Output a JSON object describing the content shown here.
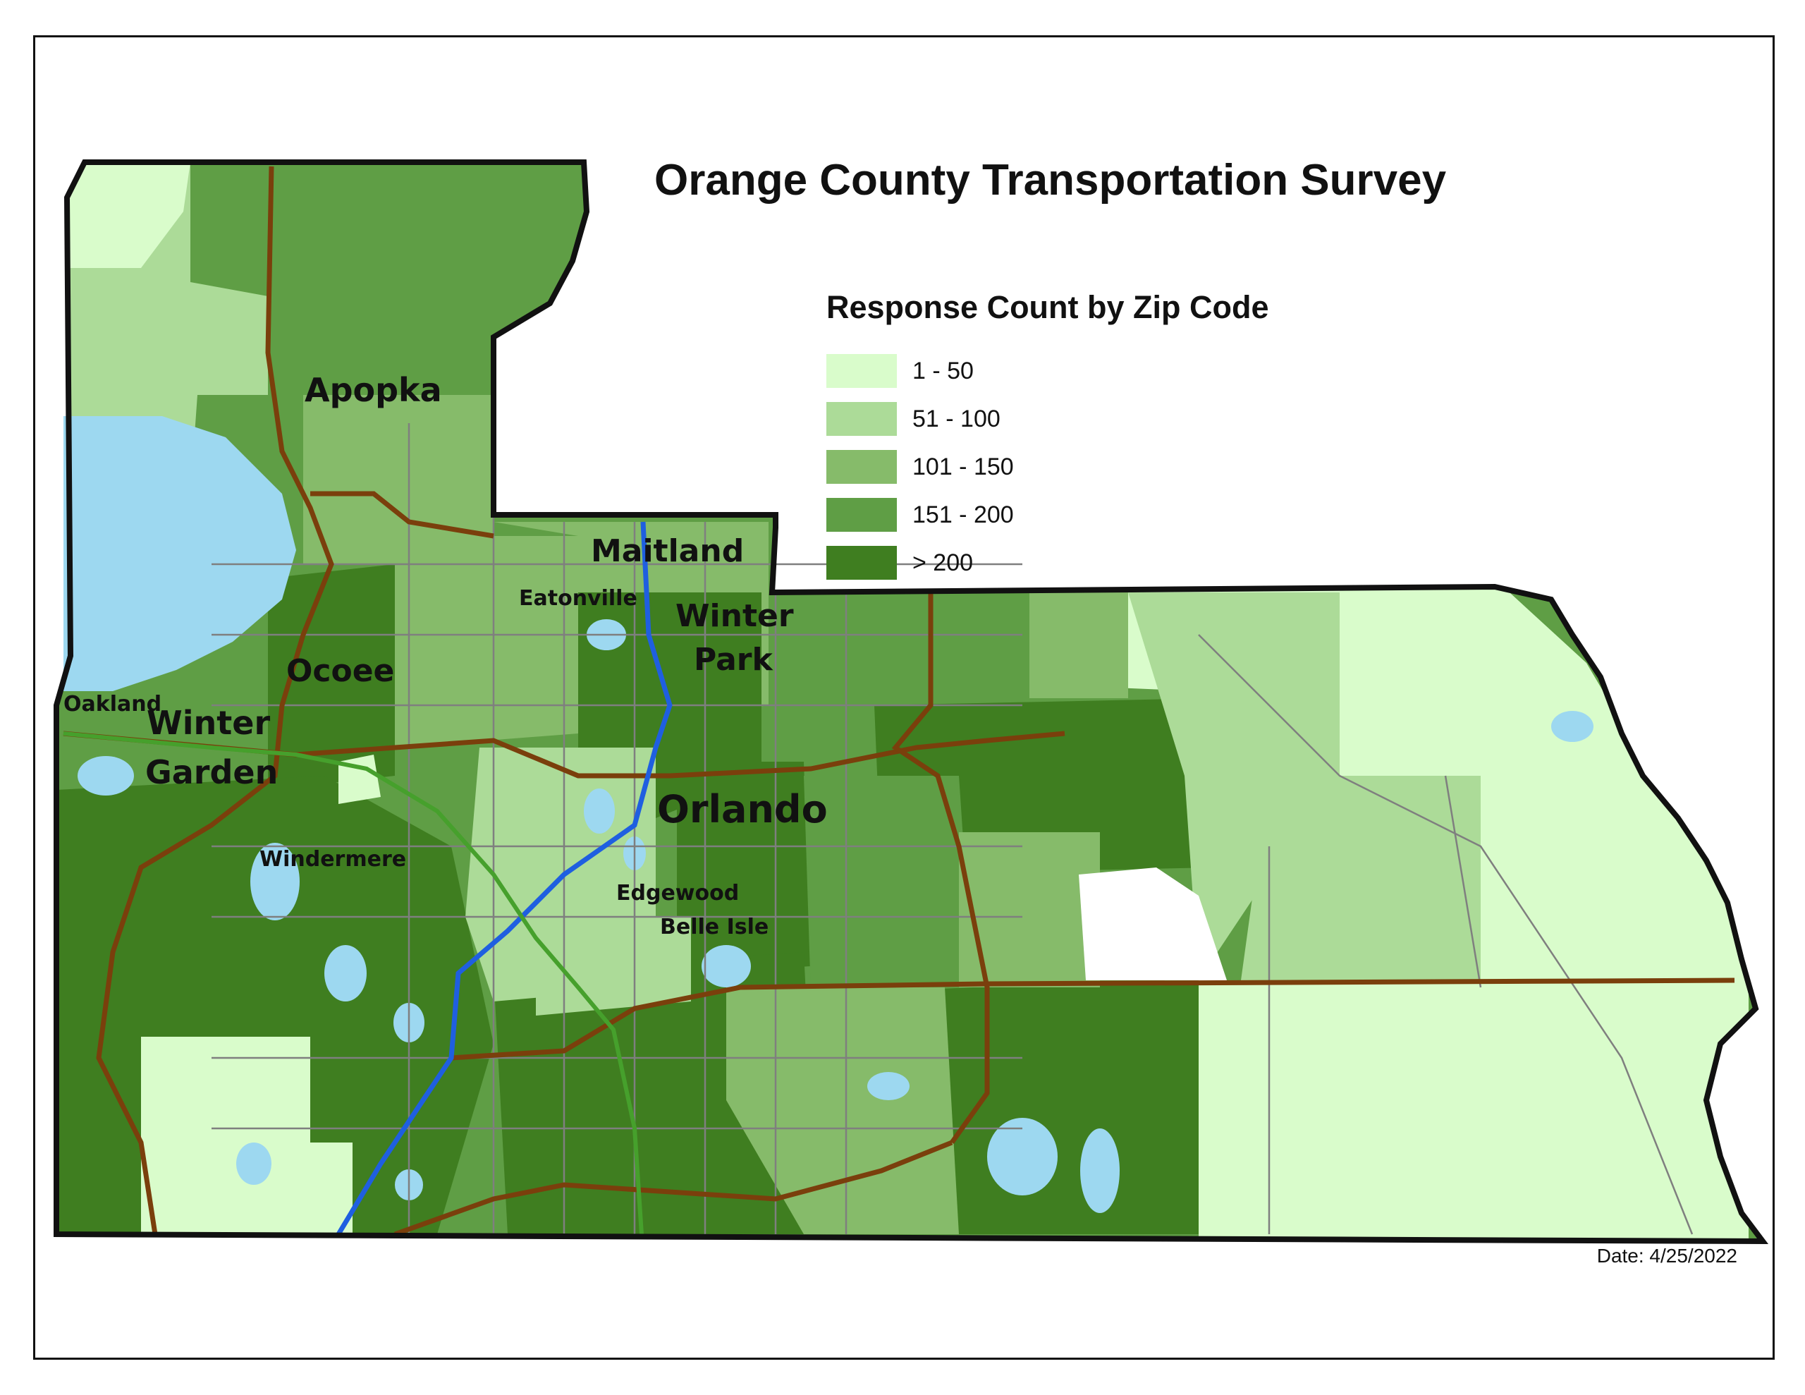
{
  "title": "Orange County Transportation Survey",
  "legend": {
    "title": "Response Count by Zip Code",
    "items": [
      {
        "label": "1 - 50",
        "color": "#d9fccb"
      },
      {
        "label": "51 - 100",
        "color": "#acdb98"
      },
      {
        "label": "101 - 150",
        "color": "#86bb6a"
      },
      {
        "label": "151 - 200",
        "color": "#5f9e45"
      },
      {
        "label": "> 200",
        "color": "#3f7e20"
      }
    ]
  },
  "date": "Date: 4/25/2022",
  "places": {
    "apopka": "Apopka",
    "maitland": "Maitland",
    "eatonville": "Eatonville",
    "winter_park_1": "Winter",
    "winter_park_2": "Park",
    "ocoee": "Ocoee",
    "oakland": "Oakland",
    "winter_garden_1": "Winter",
    "winter_garden_2": "Garden",
    "orlando": "Orlando",
    "windermere": "Windermere",
    "edgewood": "Edgewood",
    "belle_isle": "Belle Isle"
  },
  "colors": {
    "water": "#9dd8f0",
    "major_road": "#7a3f0c",
    "minor_road": "#7f7f7f",
    "interstate": "#1f5fe0",
    "toll_road": "#46a02c",
    "boundary": "#111111"
  }
}
